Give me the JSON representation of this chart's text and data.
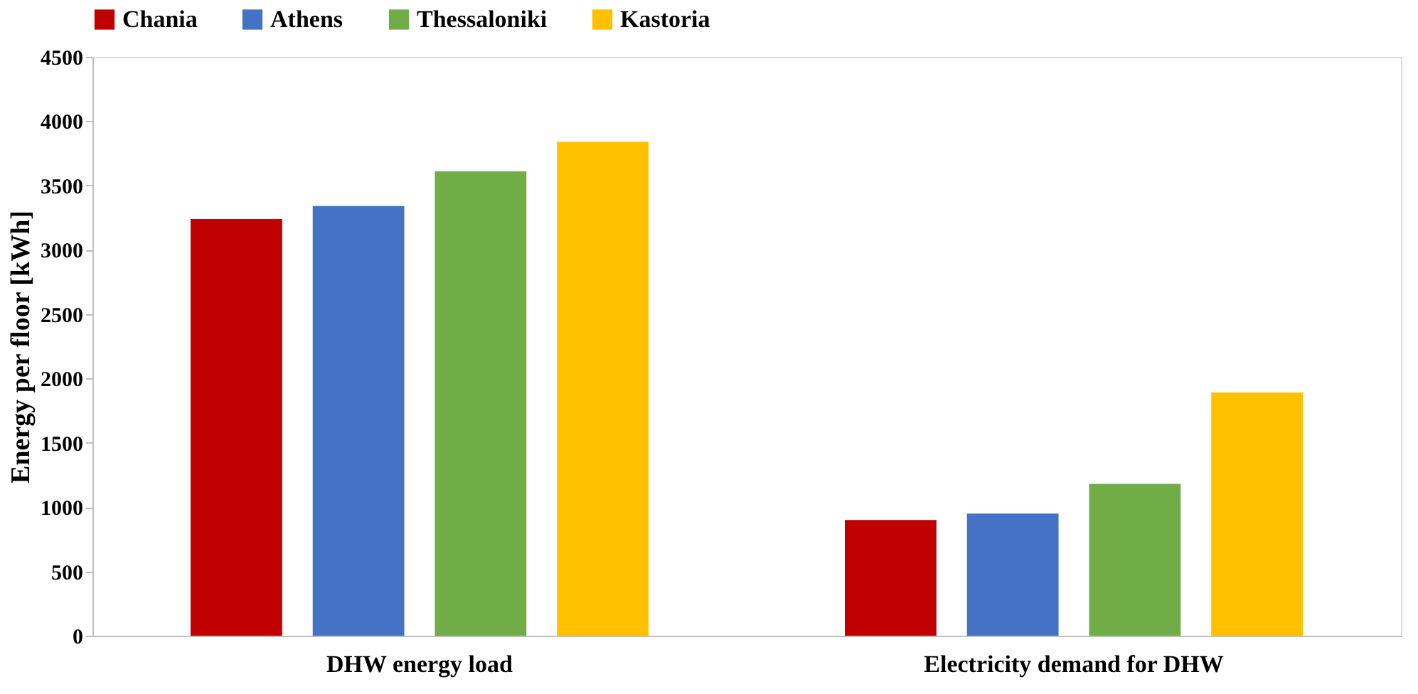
{
  "chart_data": {
    "type": "bar",
    "ylabel": "Energy per floor [kWh]",
    "categories": [
      "DHW energy load",
      "Electricity demand for DHW"
    ],
    "series": [
      {
        "name": "Chania",
        "color": "#c00000",
        "values": [
          3240,
          900
        ]
      },
      {
        "name": "Athens",
        "color": "#4472c4",
        "values": [
          3340,
          950
        ]
      },
      {
        "name": "Thessaloniki",
        "color": "#70ad47",
        "values": [
          3610,
          1180
        ]
      },
      {
        "name": "Kastoria",
        "color": "#ffc000",
        "values": [
          3840,
          1890
        ]
      }
    ],
    "ylim": [
      0,
      4500
    ],
    "yticks": [
      0,
      500,
      1000,
      1500,
      2000,
      2500,
      3000,
      3500,
      4000,
      4500
    ],
    "grid": false,
    "legend": "top"
  }
}
